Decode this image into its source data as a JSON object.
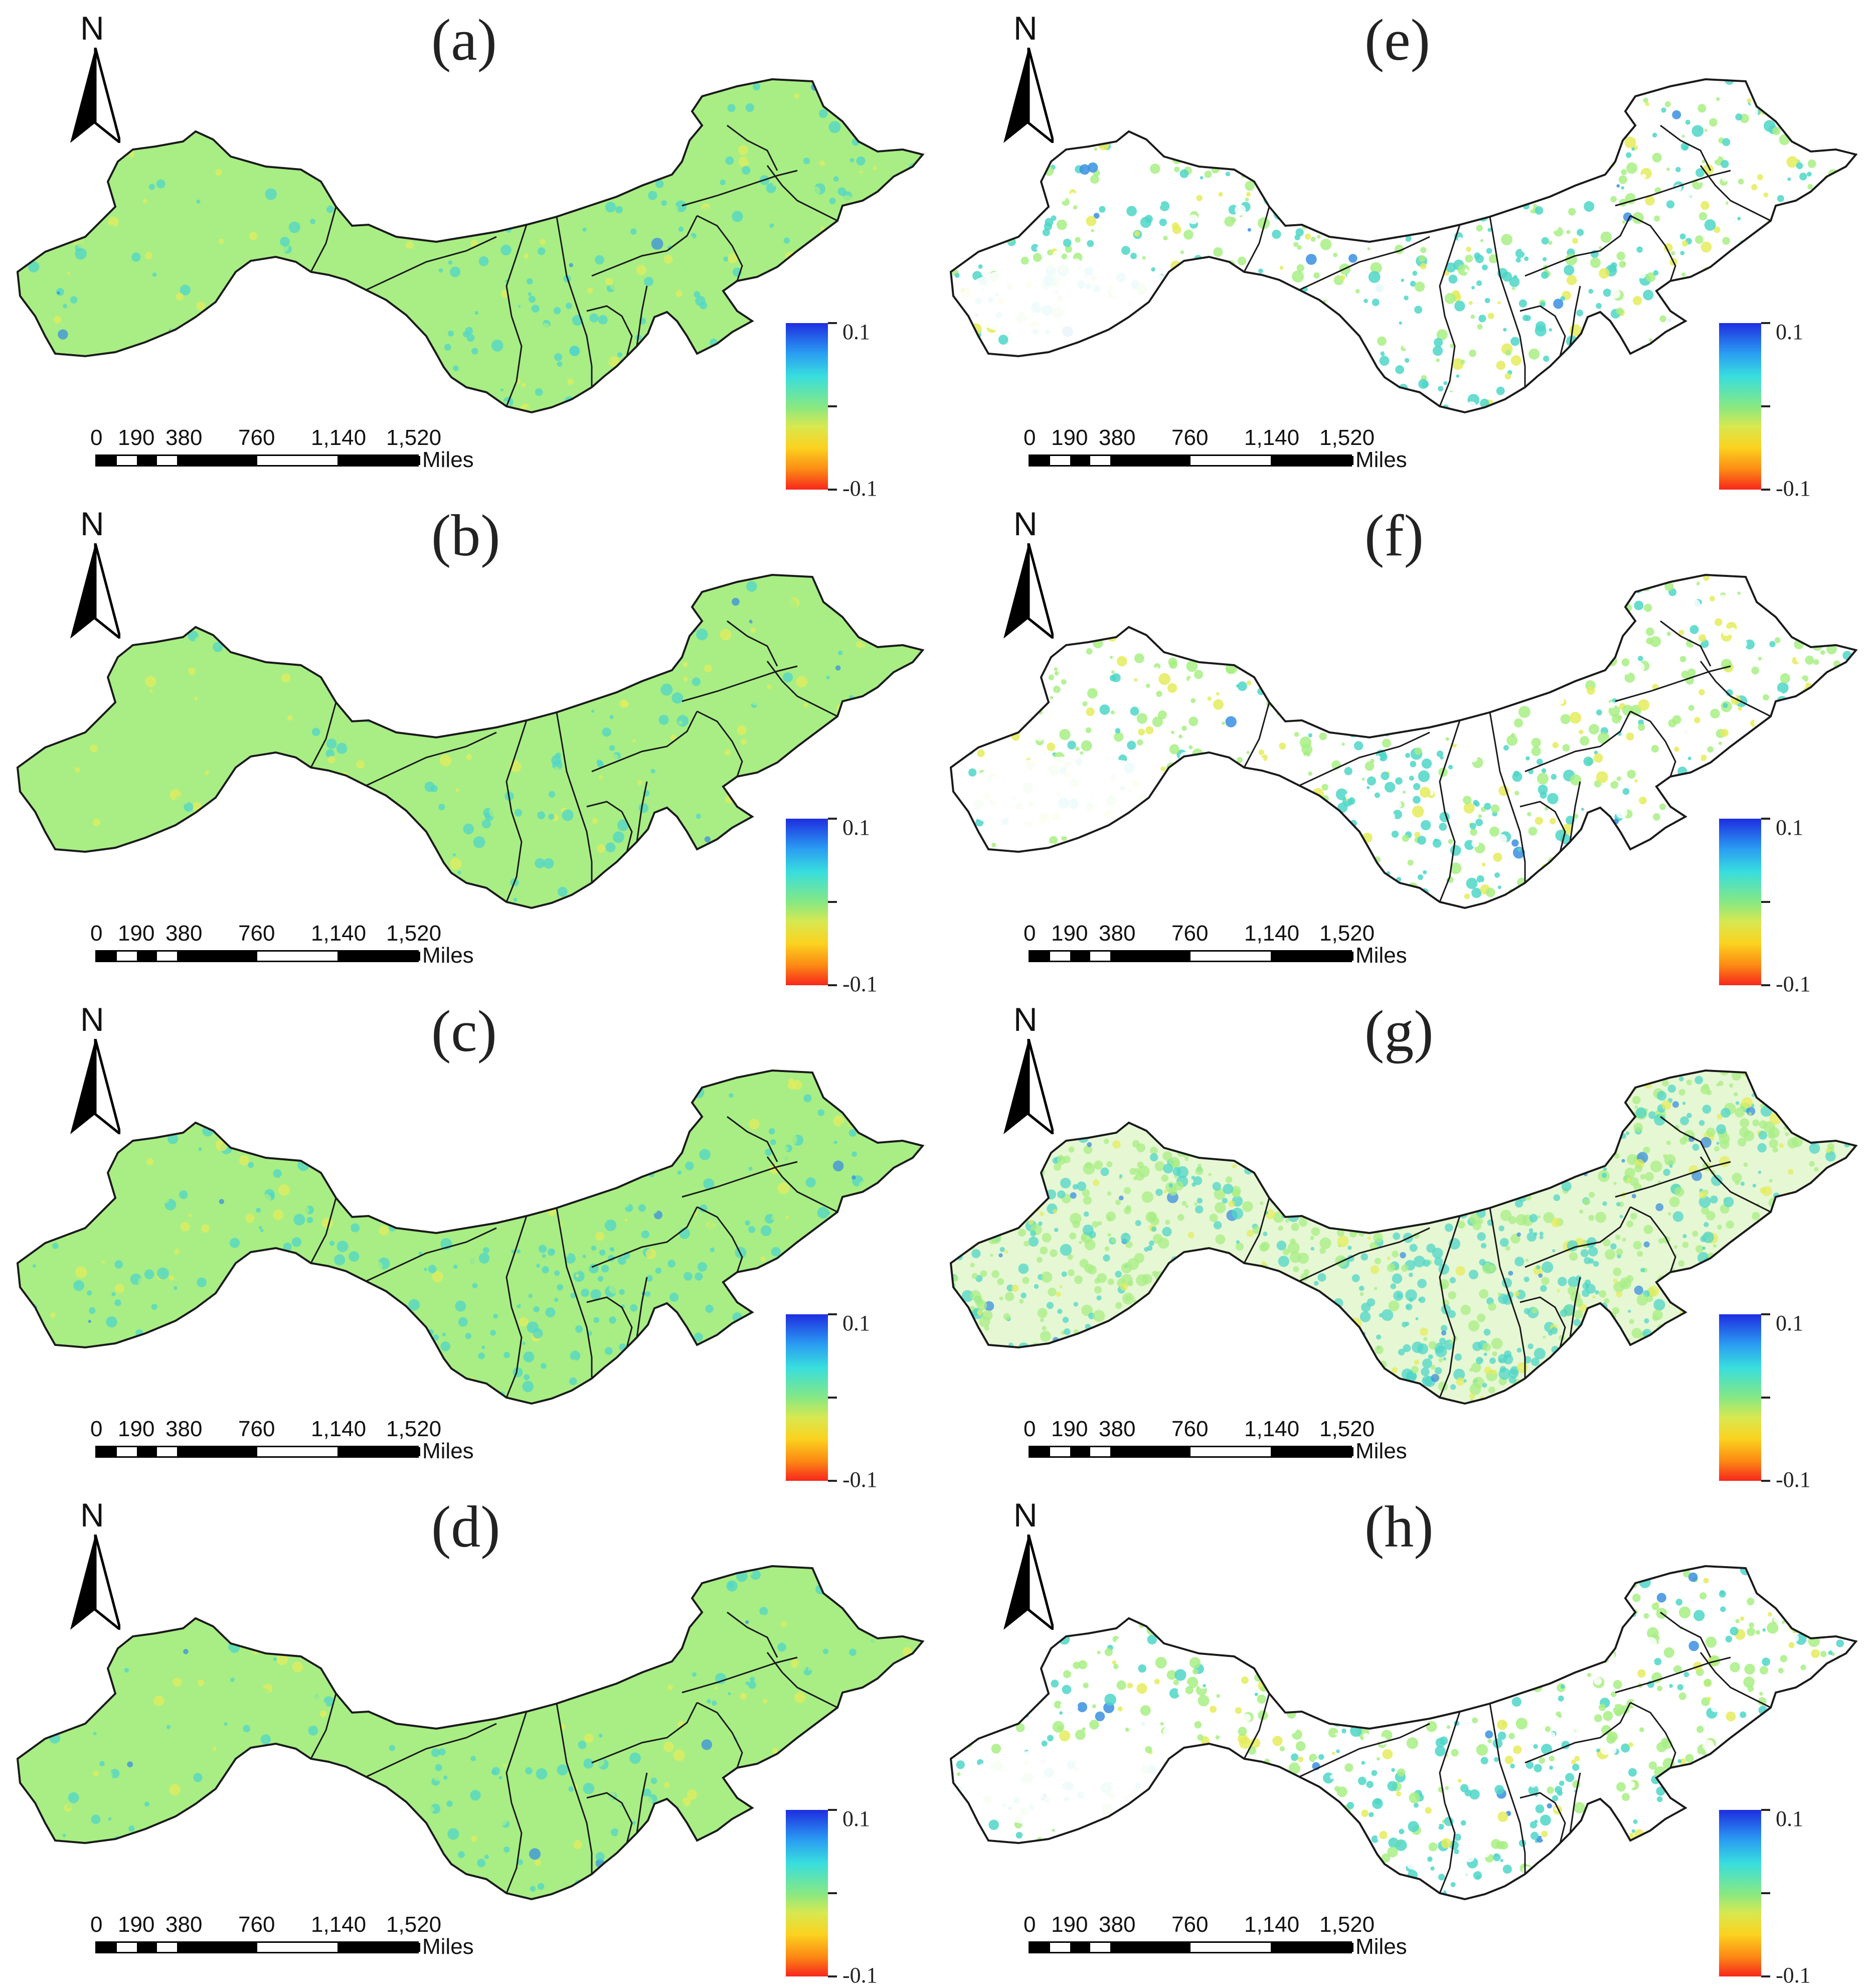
{
  "panels": [
    {
      "id": "a",
      "label": "(a)",
      "fill": "dense",
      "teal": 0.35
    },
    {
      "id": "b",
      "label": "(b)",
      "fill": "dense",
      "teal": 0.2
    },
    {
      "id": "c",
      "label": "(c)",
      "fill": "dense",
      "teal": 0.6
    },
    {
      "id": "d",
      "label": "(d)",
      "fill": "dense",
      "teal": 0.3
    },
    {
      "id": "e",
      "label": "(e)",
      "fill": "sparse",
      "teal": 0.45
    },
    {
      "id": "f",
      "label": "(f)",
      "fill": "sparse",
      "teal": 0.25
    },
    {
      "id": "g",
      "label": "(g)",
      "fill": "medium",
      "teal": 0.6
    },
    {
      "id": "h",
      "label": "(h)",
      "fill": "sparse",
      "teal": 0.35
    }
  ],
  "north_letter": "N",
  "legend": {
    "max": "0.1",
    "min": "-0.1"
  },
  "scale_bar": {
    "ticks": [
      "0",
      "190",
      "380",
      "760",
      "1,140",
      "1,520"
    ],
    "unit": "Miles"
  },
  "colors": {
    "base_green": "#a8ee84",
    "teal": "#4fd6c8",
    "blue": "#3a8fe0",
    "yellow": "#e4ec5c",
    "border": "#1a1a1a"
  }
}
